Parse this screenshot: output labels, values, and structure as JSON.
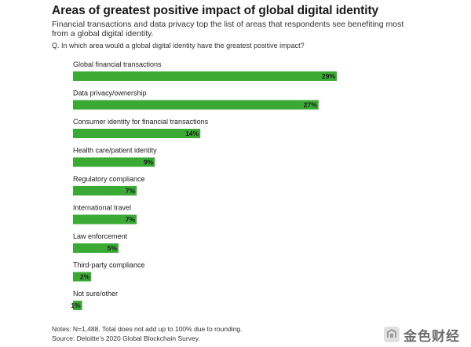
{
  "header": {
    "title": "Areas of greatest positive impact of global digital identity",
    "subtitle": "Financial transactions and data privacy top the list of areas that respondents see benefiting most from a global digital identity.",
    "question": "Q.  In which area would a global digital identity have the greatest positive impact?"
  },
  "colors": {
    "bar": "#3aaa35",
    "value_label_text": "#1a1a1a"
  },
  "chart_data": {
    "type": "bar",
    "orientation": "horizontal",
    "title": "Areas of greatest positive impact of global digital identity",
    "categories": [
      "Global financial transactions",
      "Data privacy/ownership",
      "Consumer identity for financial transactions",
      "Health care/patient identity",
      "Regulatory compliance",
      "International travel",
      "Law enforcement",
      "Third-party compliance",
      "Not sure/other"
    ],
    "values": [
      29,
      27,
      14,
      9,
      7,
      7,
      5,
      2,
      1
    ],
    "value_labels": [
      "29%",
      "27%",
      "14%",
      "9%",
      "7%",
      "7%",
      "5%",
      "2%",
      "1%"
    ],
    "xlim": [
      0,
      29
    ],
    "grid": false,
    "legend": "none"
  },
  "footer": {
    "notes": "Notes: N=1,488. Total does not add up to 100% due to rounding.",
    "source": "Source: Deloitte’s 2020 Global Blockchain Survey."
  },
  "watermark": {
    "text": "金色财经",
    "logo_icon": "jinse-logo-icon"
  }
}
